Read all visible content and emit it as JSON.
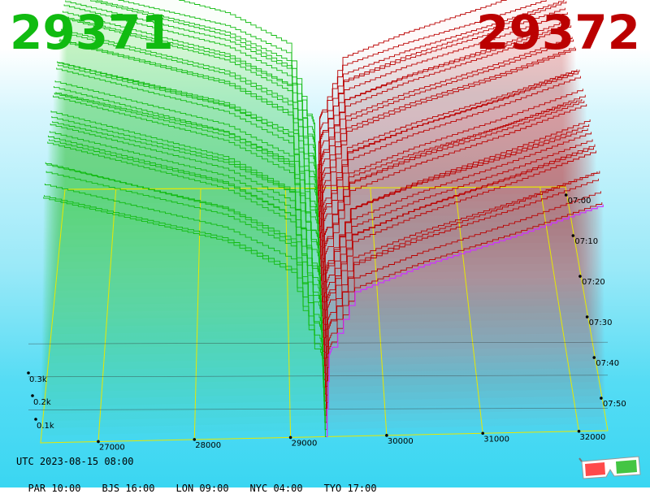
{
  "header": {
    "bid": "29371",
    "ask": "29372"
  },
  "footer": {
    "utc": "UTC 2023-08-15 08:00",
    "zones": [
      "PAR 10:00",
      "BJS 16:00",
      "LON 09:00",
      "NYC 04:00",
      "TYO 17:00"
    ]
  },
  "icons": {
    "corner": "3d-glasses-icon"
  },
  "colors": {
    "bid": "#11bb11",
    "ask": "#bb0000",
    "grid": "#e8e800",
    "latest_ask": "#cc33ff"
  },
  "chart_data": {
    "type": "area",
    "x_ticks": [
      {
        "v": 27000,
        "label": "27000"
      },
      {
        "v": 28000,
        "label": "28000"
      },
      {
        "v": 29000,
        "label": "29000"
      },
      {
        "v": 30000,
        "label": "30000"
      },
      {
        "v": 31000,
        "label": "31000"
      },
      {
        "v": 32000,
        "label": "32000"
      }
    ],
    "z_ticks": [
      {
        "v": 100,
        "label": "0.1k"
      },
      {
        "v": 200,
        "label": "0.2k"
      },
      {
        "v": 300,
        "label": "0.3k"
      }
    ],
    "t_ticks": [
      {
        "t": 0,
        "label": "07:00"
      },
      {
        "t": 10,
        "label": "07:10"
      },
      {
        "t": 20,
        "label": "07:20"
      },
      {
        "t": 30,
        "label": "07:30"
      },
      {
        "t": 40,
        "label": "07:40"
      },
      {
        "t": 50,
        "label": "07:50"
      }
    ],
    "xlim": [
      26400,
      32300
    ],
    "tlim": [
      0,
      60
    ],
    "mid_price": 29371.5,
    "bid_depth_profile": [
      {
        "distance": 0,
        "cum_volume": 0
      },
      {
        "distance": 30,
        "cum_volume": 95
      },
      {
        "distance": 300,
        "cum_volume": 200
      },
      {
        "distance": 1000,
        "cum_volume": 240
      },
      {
        "distance": 2000,
        "cum_volume": 270
      },
      {
        "distance": 3000,
        "cum_volume": 300
      }
    ],
    "ask_depth_profile": [
      {
        "distance": 0,
        "cum_volume": 0
      },
      {
        "distance": 30,
        "cum_volume": 100
      },
      {
        "distance": 300,
        "cum_volume": 175
      },
      {
        "distance": 1000,
        "cum_volume": 205
      },
      {
        "distance": 2000,
        "cum_volume": 240
      },
      {
        "distance": 2900,
        "cum_volume": 275
      }
    ],
    "series": [
      {
        "side": "bid",
        "color": "#11bb11"
      },
      {
        "side": "ask",
        "color": "#bb0000"
      }
    ]
  }
}
